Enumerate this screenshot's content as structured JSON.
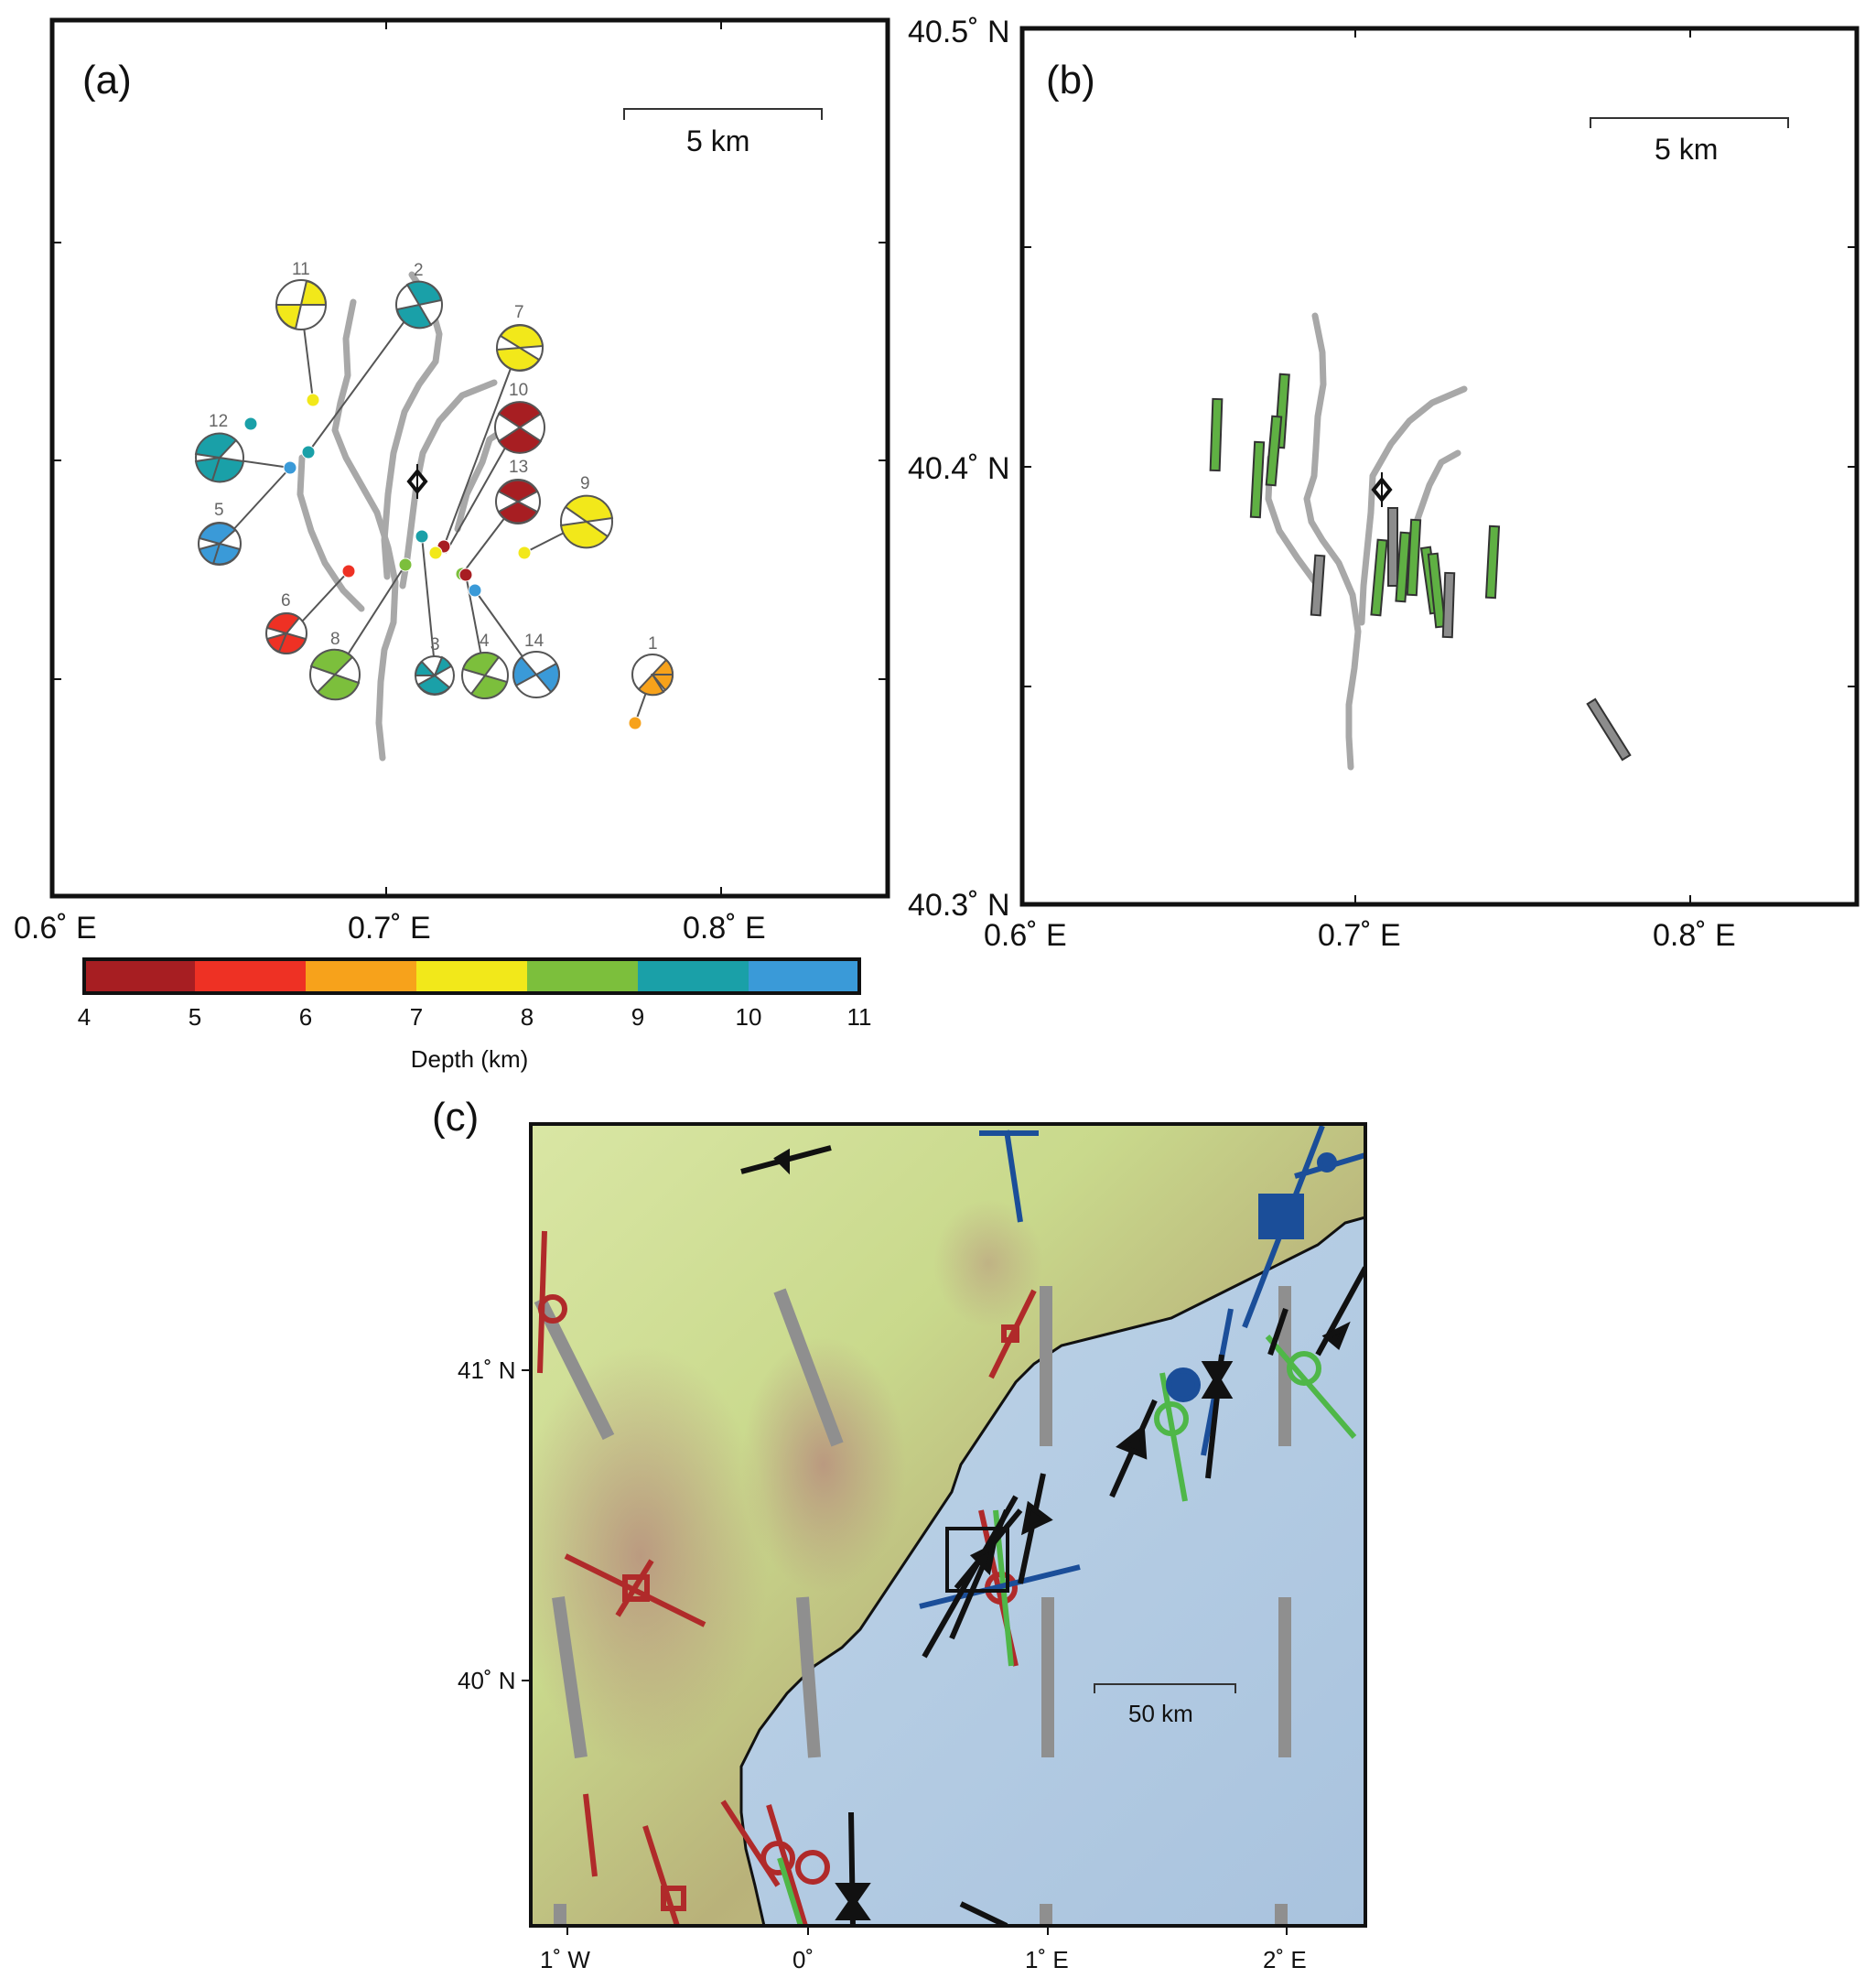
{
  "panel_a": {
    "letter": "(a)",
    "scale_label": "5 km",
    "x_ticks": [
      "0.6˚ E",
      "0.7˚ E",
      "0.8˚ E"
    ],
    "events": [
      {
        "id": "1",
        "depth_km": 6.5,
        "color": "#f7a21b"
      },
      {
        "id": "2",
        "depth_km": 9.5,
        "color": "#1aa0a8"
      },
      {
        "id": "3",
        "depth_km": 9.5,
        "color": "#1aa0a8"
      },
      {
        "id": "4",
        "depth_km": 8.5,
        "color": "#7cbf3c"
      },
      {
        "id": "5",
        "depth_km": 10.5,
        "color": "#3a9ad8"
      },
      {
        "id": "6",
        "depth_km": 5.5,
        "color": "#ee3124"
      },
      {
        "id": "7",
        "depth_km": 7.5,
        "color": "#f2e81a"
      },
      {
        "id": "8",
        "depth_km": 8.5,
        "color": "#7cbf3c"
      },
      {
        "id": "9",
        "depth_km": 7.5,
        "color": "#f2e81a"
      },
      {
        "id": "10",
        "depth_km": 4.5,
        "color": "#a71e22"
      },
      {
        "id": "11",
        "depth_km": 7.5,
        "color": "#f2e81a"
      },
      {
        "id": "12",
        "depth_km": 9.5,
        "color": "#1aa0a8"
      },
      {
        "id": "13",
        "depth_km": 4.5,
        "color": "#a71e22"
      },
      {
        "id": "14",
        "depth_km": 10.5,
        "color": "#3a9ad8"
      }
    ]
  },
  "panel_b": {
    "letter": "(b)",
    "scale_label": "5 km",
    "x_ticks": [
      "0.6˚ E",
      "0.7˚ E",
      "0.8˚ E"
    ],
    "y_ticks": [
      "40.5˚ N",
      "40.4˚ N",
      "40.3˚ N"
    ]
  },
  "colorbar": {
    "title": "Depth (km)",
    "ticks": [
      "4",
      "5",
      "6",
      "7",
      "8",
      "9",
      "10",
      "11"
    ],
    "colors": [
      "#a71e22",
      "#ee3124",
      "#f7a21b",
      "#f2e81a",
      "#7cbf3c",
      "#1aa0a8",
      "#3a9ad8"
    ]
  },
  "panel_c": {
    "letter": "(c)",
    "scale_label": "50 km",
    "x_ticks": [
      "1˚ W",
      "0˚",
      "1˚ E",
      "2˚ E"
    ],
    "y_ticks": [
      "41˚ N",
      "40˚ N"
    ]
  }
}
